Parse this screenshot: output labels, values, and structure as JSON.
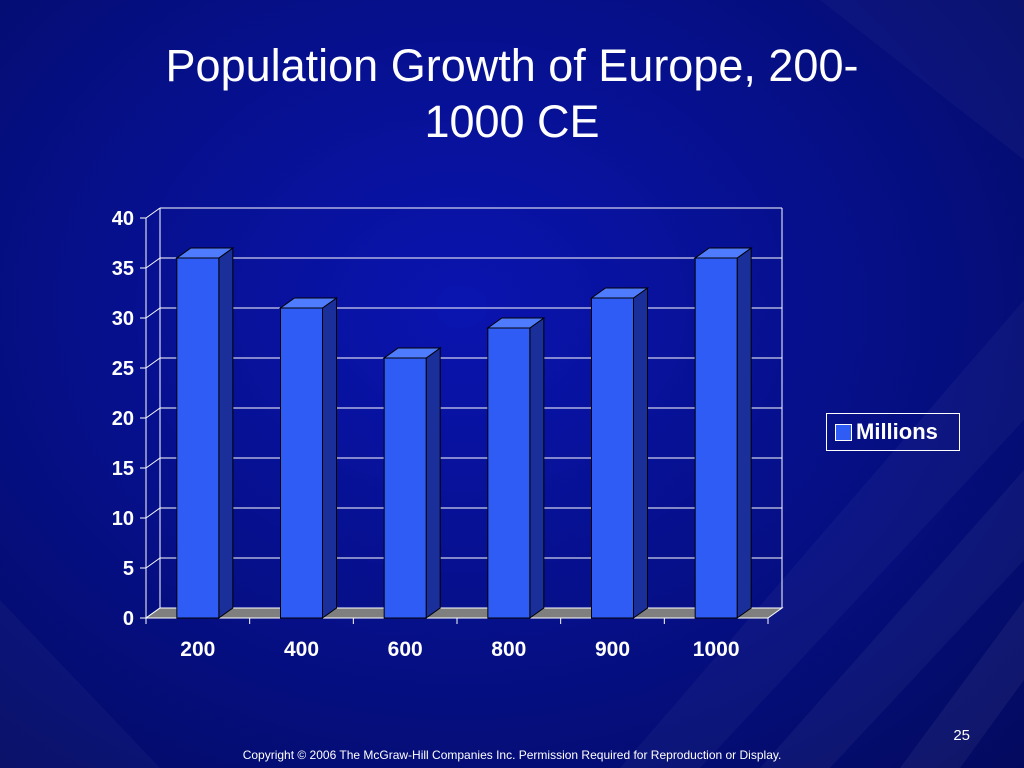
{
  "slide": {
    "title_line1": "Population Growth of Europe, 200-",
    "title_line2": "1000 CE",
    "slide_number": "25",
    "copyright": "Copyright © 2006 The McGraw-Hill Companies Inc. Permission Required for Reproduction or Display."
  },
  "colors": {
    "background": "#06108c",
    "bar_front": "#2f5cf5",
    "bar_side": "#1a2f9a",
    "bar_top": "#4f7cff",
    "floor": "#7f7f7f"
  },
  "chart_data": {
    "type": "bar",
    "categories": [
      "200",
      "400",
      "600",
      "800",
      "900",
      "1000"
    ],
    "series": [
      {
        "name": "Millions",
        "values": [
          36,
          31,
          26,
          29,
          32,
          36
        ]
      }
    ],
    "title": "Population Growth of Europe, 200-1000 CE",
    "xlabel": "",
    "ylabel": "",
    "ylim": [
      0,
      40
    ],
    "yticks": [
      "0",
      "5",
      "10",
      "15",
      "20",
      "25",
      "30",
      "35",
      "40"
    ],
    "grid": true,
    "legend": "right",
    "style": "3d-column"
  }
}
